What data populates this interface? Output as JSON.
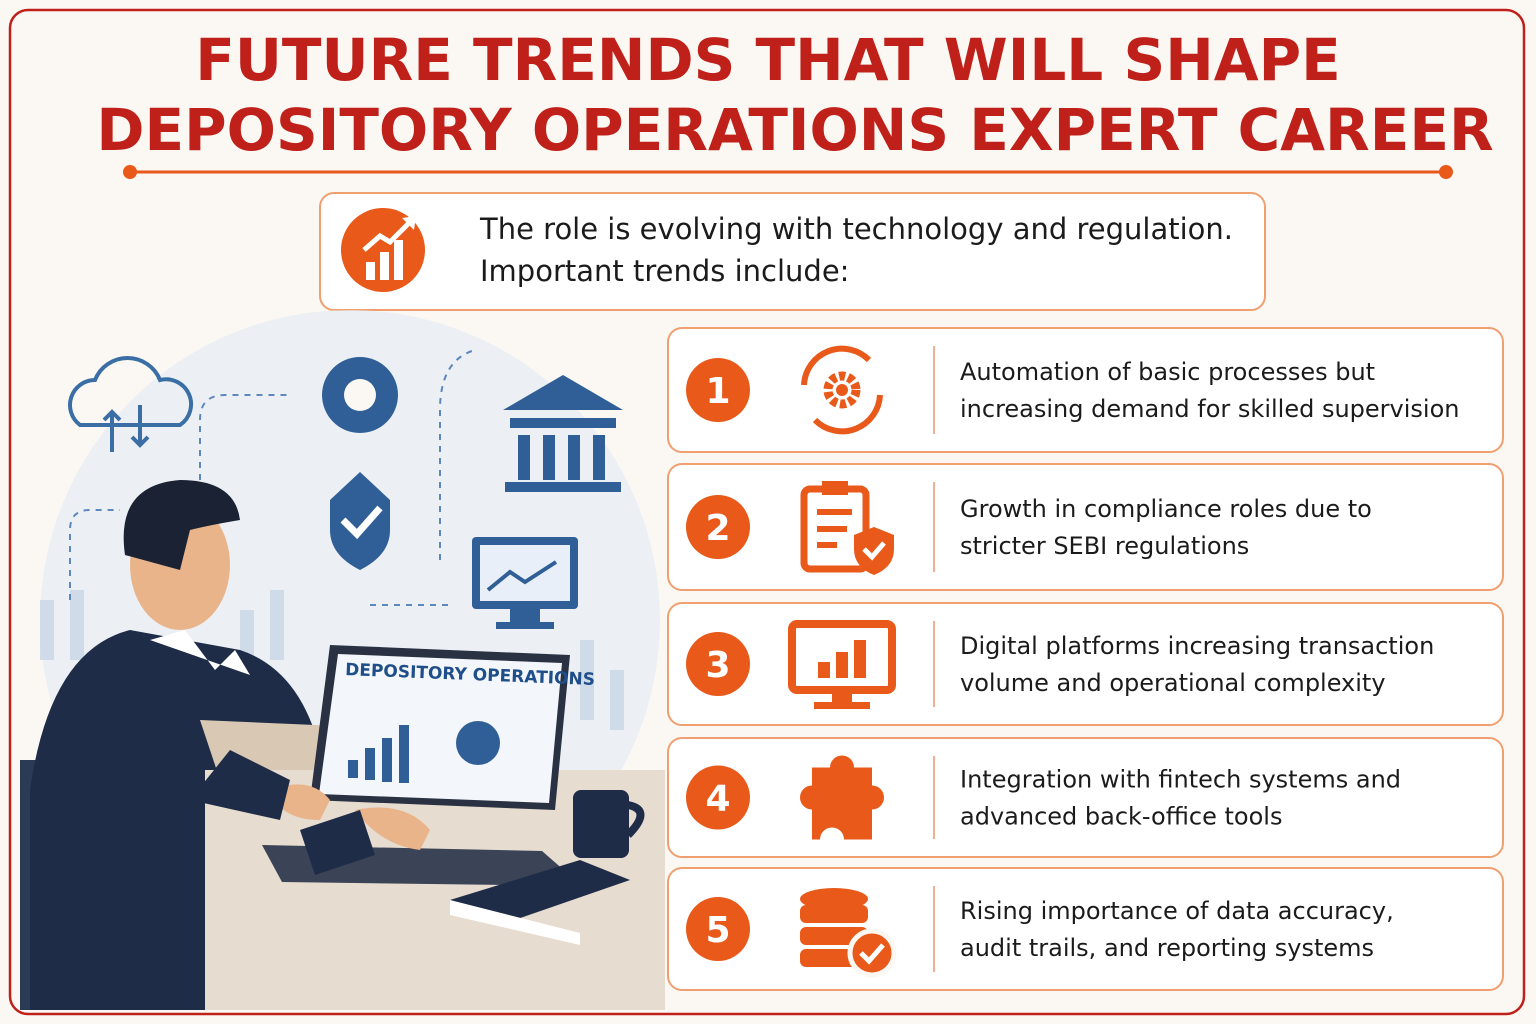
{
  "header": {
    "title": [
      "FUTURE TRENDS THAT WILL SHAPE",
      "DEPOSITORY OPERATIONS EXPERT CAREER"
    ]
  },
  "intro": {
    "lines": [
      "The role is evolving with technology and regulation.",
      "Important trends include:"
    ]
  },
  "illustration": {
    "screen_title": "DEPOSITORY OPERATIONS"
  },
  "trends": [
    {
      "number": 1,
      "lines": [
        "Automation of basic processes but",
        "increasing demand for skilled supervision"
      ]
    },
    {
      "number": 2,
      "lines": [
        "Growth in compliance roles due to",
        "stricter SEBI regulations"
      ]
    },
    {
      "number": 3,
      "lines": [
        "Digital platforms increasing transaction",
        "volume and operational complexity"
      ]
    },
    {
      "number": 4,
      "lines": [
        "Integration with fintech systems and",
        "advanced back-office tools"
      ]
    },
    {
      "number": 5,
      "lines": [
        "Rising importance of data accuracy,",
        "audit trails, and reporting systems"
      ]
    }
  ]
}
